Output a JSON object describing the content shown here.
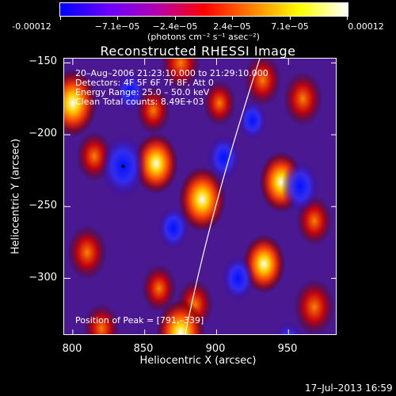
{
  "colorbar": {
    "ticks": [
      "-0.00012",
      "−7.1e−05",
      "−2.4e−05",
      "2.4e−05",
      "7.1e−05",
      "0.00012"
    ],
    "units": "(photons cm⁻² s⁻¹ asec⁻²)",
    "colors": [
      "#0000ff",
      "#6a00ff",
      "#b000b0",
      "#ff0000",
      "#ff8000",
      "#ffff00",
      "#ffffff"
    ]
  },
  "chart_data": {
    "type": "heatmap",
    "title": "Reconstructed RHESSI Image",
    "xlabel": "Heliocentric X (arcsec)",
    "ylabel": "Heliocentric Y (arcsec)",
    "xlim": [
      794,
      984
    ],
    "ylim": [
      -340,
      -147
    ],
    "xticks": [
      "800",
      "850",
      "900",
      "950"
    ],
    "yticks": [
      "−150",
      "−200",
      "−250",
      "−300"
    ],
    "xtick_values": [
      800,
      850,
      900,
      950
    ],
    "ytick_values": [
      -150,
      -200,
      -250,
      -300
    ],
    "value_range": [
      -0.00012,
      0.00012
    ],
    "peak": [
      791,
      -339
    ],
    "annotations": {
      "time_range": "20–Aug–2006 21:23:10.000 to 21:29:10.000",
      "detectors": "Detectors: 4F 5F 6F 7F 8F, Att 0",
      "energy": "Energy Range: 25.0 – 50.0 keV",
      "clean": "Clean    Total counts: 8.49E+03",
      "peak": "Position of Peak = [791,–339]"
    },
    "blobs": [
      {
        "x": 800,
        "y": -178,
        "v": 1.0
      },
      {
        "x": 815,
        "y": -215,
        "v": 0.6
      },
      {
        "x": 810,
        "y": -282,
        "v": 0.7
      },
      {
        "x": 858,
        "y": -220,
        "v": 0.85
      },
      {
        "x": 856,
        "y": -183,
        "v": 0.55
      },
      {
        "x": 875,
        "y": -150,
        "v": 0.7
      },
      {
        "x": 890,
        "y": -245,
        "v": 0.95
      },
      {
        "x": 902,
        "y": -178,
        "v": 0.5
      },
      {
        "x": 932,
        "y": -162,
        "v": 0.65
      },
      {
        "x": 933,
        "y": -290,
        "v": 0.8
      },
      {
        "x": 885,
        "y": -318,
        "v": 0.6
      },
      {
        "x": 860,
        "y": -307,
        "v": 0.55
      },
      {
        "x": 945,
        "y": -233,
        "v": 0.85
      },
      {
        "x": 960,
        "y": -175,
        "v": 0.7
      },
      {
        "x": 968,
        "y": -260,
        "v": 0.6
      },
      {
        "x": 968,
        "y": -320,
        "v": 0.75
      },
      {
        "x": 875,
        "y": -338,
        "v": 1.0
      },
      {
        "x": 820,
        "y": -335,
        "v": 0.6
      },
      {
        "x": 835,
        "y": -222,
        "v": -0.9
      },
      {
        "x": 905,
        "y": -216,
        "v": -0.5
      },
      {
        "x": 958,
        "y": -236,
        "v": -0.65
      },
      {
        "x": 870,
        "y": -265,
        "v": -0.45
      },
      {
        "x": 915,
        "y": -300,
        "v": -0.5
      },
      {
        "x": 950,
        "y": -345,
        "v": -0.45
      },
      {
        "x": 840,
        "y": -170,
        "v": -0.4
      },
      {
        "x": 925,
        "y": -190,
        "v": -0.35
      }
    ],
    "limb": [
      [
        930,
        -147
      ],
      [
        895,
        -255
      ],
      [
        878,
        -340
      ]
    ]
  },
  "timestamp": "17–Jul–2013 16:59"
}
